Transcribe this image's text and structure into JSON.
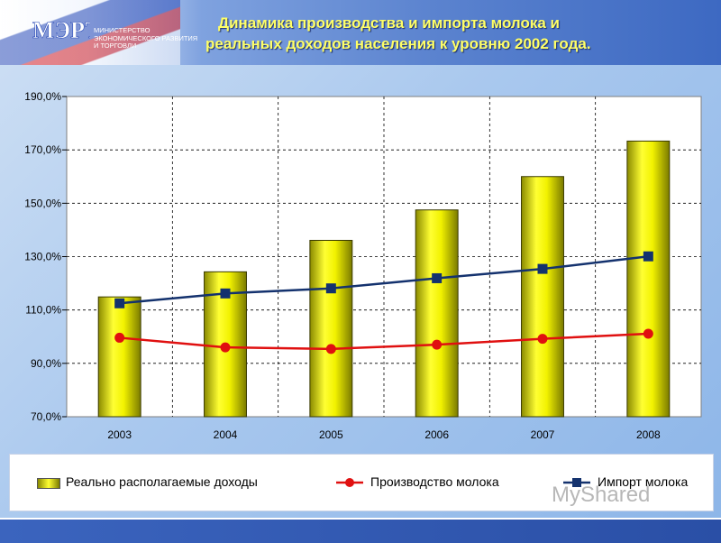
{
  "header": {
    "logo_mark": "МЭРТ",
    "logo_lines": [
      "МИНИСТЕРСТВО",
      "ЭКОНОМИЧЕСКОГО РАЗВИТИЯ",
      "И ТОРГОВЛИ"
    ],
    "title_line1": "Динамика производства и импорта молока и",
    "title_line2": "реальных доходов населения к уровню 2002 года."
  },
  "watermark": "MyShared",
  "chart_data": {
    "type": "bar",
    "categories": [
      "2003",
      "2004",
      "2005",
      "2006",
      "2007",
      "2008"
    ],
    "ylim": [
      70,
      190
    ],
    "yticks": [
      70,
      90,
      110,
      130,
      150,
      170,
      190
    ],
    "ytick_labels": [
      "70,0%",
      "90,0%",
      "110,0%",
      "130,0%",
      "150,0%",
      "170,0%",
      "190,0%"
    ],
    "grid": true,
    "legend_position": "bottom",
    "series": [
      {
        "name": "Реально располагаемые доходы",
        "kind": "bar",
        "color": "#e6e600",
        "values": [
          114.9,
          124.3,
          136.1,
          147.5,
          160.0,
          173.3
        ]
      },
      {
        "name": "Производство молока",
        "kind": "line",
        "marker": "circle",
        "color": "#e01010",
        "values": [
          99.6,
          96.0,
          95.4,
          97.0,
          99.2,
          101.1
        ]
      },
      {
        "name": "Импорт молока",
        "kind": "line",
        "marker": "square",
        "color": "#14326e",
        "values": [
          112.5,
          116.2,
          118.1,
          121.9,
          125.4,
          130.1
        ]
      }
    ]
  }
}
